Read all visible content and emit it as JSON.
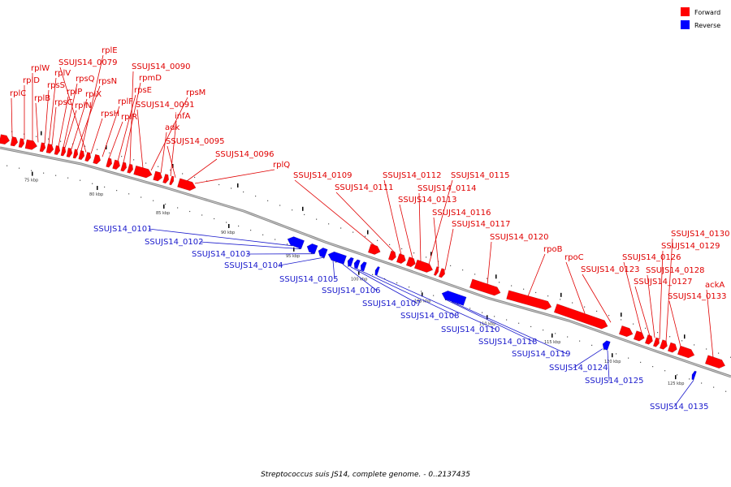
{
  "legend": [
    {
      "label": "Forward",
      "color": "#ff0000"
    },
    {
      "label": "Reverse",
      "color": "#0000ff"
    }
  ],
  "colors": {
    "forward": "#ff0000",
    "reverse": "#0000ff",
    "forward_label": "#e00000",
    "reverse_label": "#1a1acc",
    "backbone": "#888888"
  },
  "caption": "Streptococcus suis JS14, complete genome. - 0..2137435",
  "ticks": [
    "75 kbp",
    "80 kbp",
    "85 kbp",
    "90 kbp",
    "95 kbp",
    "100 kbp",
    "105 kbp",
    "110 kbp",
    "115 kbp",
    "120 kbp",
    "125 kbp"
  ],
  "forward_genes": [
    "rplC",
    "rplD",
    "rplW",
    "rplB",
    "rpsS",
    "rplV",
    "rpsC",
    "rplP",
    "rpsQ",
    "rplN",
    "rplX",
    "rpsN",
    "rplE",
    "SSUJS14_0079",
    "rpsH",
    "rplF",
    "rplR",
    "rpsE",
    "rpmD",
    "SSUJS14_0090",
    "SSUJS14_0091",
    "rpsM",
    "adk",
    "infA",
    "SSUJS14_0095",
    "SSUJS14_0096",
    "rplQ",
    "SSUJS14_0109",
    "SSUJS14_0111",
    "SSUJS14_0112",
    "SSUJS14_0113",
    "SSUJS14_0114",
    "SSUJS14_0115",
    "SSUJS14_0116",
    "SSUJS14_0117",
    "SSUJS14_0120",
    "rpoB",
    "rpoC",
    "SSUJS14_0123",
    "SSUJS14_0126",
    "SSUJS14_0127",
    "SSUJS14_0128",
    "SSUJS14_0129",
    "SSUJS14_0130",
    "SSUJS14_0133",
    "ackA"
  ],
  "reverse_genes": [
    "SSUJS14_0101",
    "SSUJS14_0102",
    "SSUJS14_0103",
    "SSUJS14_0104",
    "SSUJS14_0105",
    "SSUJS14_0106",
    "SSUJS14_0107",
    "SSUJS14_0108",
    "SSUJS14_0110",
    "SSUJS14_0118",
    "SSUJS14_0119",
    "SSUJS14_0124",
    "SSUJS14_0125",
    "SSUJS14_0135"
  ]
}
